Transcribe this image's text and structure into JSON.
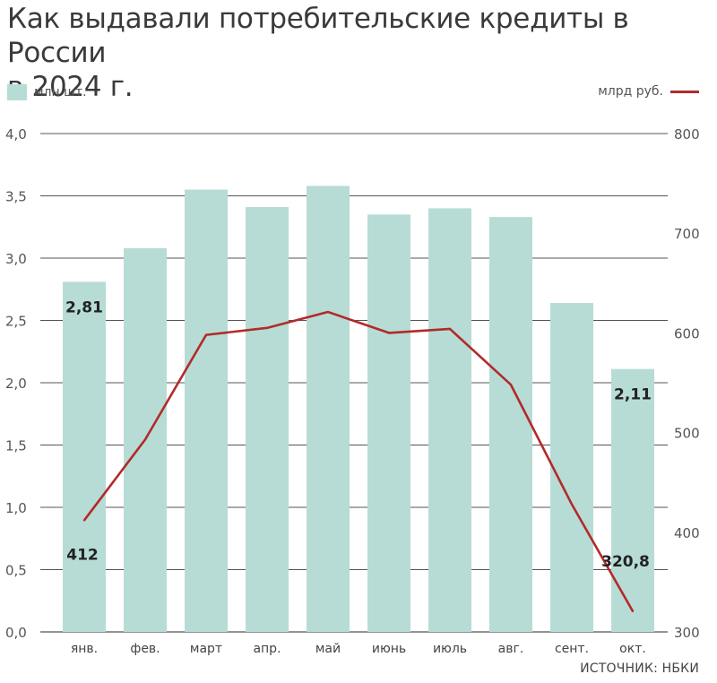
{
  "header": {
    "title": "Как выдавали потребительские кредиты в России\nв 2024 г."
  },
  "legend": {
    "left_label": "млн шт.",
    "right_label": "млрд руб."
  },
  "source": "ИСТОЧНИК: НБКИ",
  "colors": {
    "bars": "#b7dcd5",
    "line": "#b22a2a",
    "grid": "#555555"
  },
  "chart_data": {
    "type": "bar",
    "title": "Как выдавали потребительские кредиты в России в 2024 г.",
    "categories": [
      "янв.",
      "фев.",
      "март",
      "апр.",
      "май",
      "июнь",
      "июль",
      "авг.",
      "сент.",
      "окт."
    ],
    "series": [
      {
        "name": "млн шт.",
        "type": "bar",
        "axis": "left",
        "values": [
          2.81,
          3.08,
          3.55,
          3.41,
          3.58,
          3.35,
          3.4,
          3.33,
          2.64,
          2.11
        ]
      },
      {
        "name": "млрд руб.",
        "type": "line",
        "axis": "right",
        "values": [
          412,
          493,
          598,
          605,
          621,
          600,
          604,
          548,
          428,
          320.8
        ]
      }
    ],
    "left_axis": {
      "ylim": [
        0,
        4.0
      ],
      "ticks": [
        "0,0",
        "0,5",
        "1,0",
        "1,5",
        "2,0",
        "2,5",
        "3,0",
        "3,5",
        "4,0"
      ]
    },
    "right_axis": {
      "ylim": [
        300,
        800
      ],
      "ticks": [
        "300",
        "400",
        "500",
        "600",
        "700",
        "800"
      ]
    },
    "data_labels": [
      {
        "series": 0,
        "index": 0,
        "text": "2,81"
      },
      {
        "series": 0,
        "index": 9,
        "text": "2,11"
      },
      {
        "series": 1,
        "index": 0,
        "text": "412"
      },
      {
        "series": 1,
        "index": 9,
        "text": "320,8"
      }
    ],
    "grid": true
  }
}
